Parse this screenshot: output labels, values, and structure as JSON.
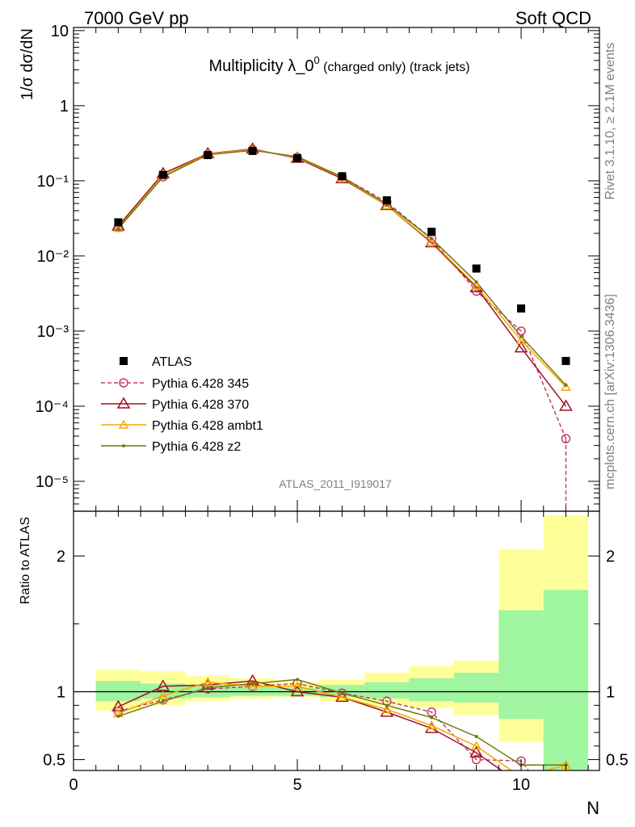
{
  "header": {
    "left": "7000 GeV pp",
    "right": "Soft QCD"
  },
  "side_label_top": "Rivet 3.1.10, ≥ 2.1M events",
  "side_label_bottom": "mcplots.cern.ch [arXiv:1306.3436]",
  "analysis_label": "ATLAS_2011_I919017",
  "colors": {
    "atlas": "#000000",
    "p345": "#c0406a",
    "p370": "#a0101f",
    "ambt1": "#f5a800",
    "z2": "#6b7a10",
    "band_inner": "#a0f5a0",
    "band_outer": "#ffff9a"
  },
  "chart_data": [
    {
      "type": "scatter",
      "title": "Multiplicity λ_0",
      "title_sup": "0",
      "title_suffix": " (charged only) (track jets)",
      "xlabel": "N",
      "ylabel": "1/σ dσ/dN",
      "yscale": "log",
      "xlim": [
        0,
        11.75
      ],
      "ylim": [
        4e-06,
        11
      ],
      "ytick_labels": [
        "10⁻⁵",
        "10⁻⁴",
        "10⁻³",
        "10⁻²",
        "10⁻¹",
        "1",
        "10"
      ],
      "legend_position": "left-middle",
      "series": [
        {
          "name": "ATLAS",
          "x": [
            1,
            2,
            3,
            4,
            5,
            6,
            7,
            8,
            9,
            10,
            11
          ],
          "y": [
            0.028,
            0.12,
            0.22,
            0.25,
            0.2,
            0.115,
            0.055,
            0.021,
            0.0068,
            0.002,
            0.0004
          ]
        },
        {
          "name": "Pythia 6.428 345",
          "x": [
            1,
            2,
            3,
            4,
            5,
            6,
            7,
            8,
            9,
            10,
            11
          ],
          "y": [
            0.024,
            0.113,
            0.224,
            0.26,
            0.205,
            0.113,
            0.052,
            0.017,
            0.0034,
            0.001,
            3.7e-05
          ]
        },
        {
          "name": "Pythia 6.428 370",
          "x": [
            1,
            2,
            3,
            4,
            5,
            6,
            7,
            8,
            9,
            10,
            11
          ],
          "y": [
            0.025,
            0.125,
            0.23,
            0.265,
            0.2,
            0.107,
            0.047,
            0.015,
            0.0038,
            0.0006,
            0.0001
          ]
        },
        {
          "name": "Pythia 6.428 ambt1",
          "x": [
            1,
            2,
            3,
            4,
            5,
            6,
            7,
            8,
            9,
            10,
            11
          ],
          "y": [
            0.0235,
            0.117,
            0.228,
            0.26,
            0.205,
            0.111,
            0.047,
            0.0155,
            0.004,
            0.00075,
            0.00018
          ]
        },
        {
          "name": "Pythia 6.428 z2",
          "x": [
            1,
            2,
            3,
            4,
            5,
            6,
            7,
            8,
            9,
            10,
            11
          ],
          "y": [
            0.023,
            0.113,
            0.222,
            0.255,
            0.21,
            0.113,
            0.049,
            0.017,
            0.0045,
            0.00085,
            0.00019
          ]
        }
      ]
    },
    {
      "type": "line",
      "ylabel": "Ratio to ATLAS",
      "xlabel": "N",
      "xlim": [
        0,
        11.75
      ],
      "ylim": [
        0.42,
        2.33
      ],
      "xtick_labels": [
        "0",
        "5",
        "10"
      ],
      "ytick_labels": [
        "0.5",
        "1",
        "2"
      ],
      "band_x": [
        0.5,
        1.5,
        2.5,
        3.5,
        4.5,
        5.5,
        6.5,
        7.5,
        8.5,
        9.5,
        10.5,
        11.5
      ],
      "band_inner": [
        [
          0.93,
          1.08
        ],
        [
          0.95,
          1.06
        ],
        [
          0.96,
          1.05
        ],
        [
          0.97,
          1.04
        ],
        [
          0.97,
          1.03
        ],
        [
          0.96,
          1.05
        ],
        [
          0.95,
          1.07
        ],
        [
          0.93,
          1.1
        ],
        [
          0.92,
          1.14
        ],
        [
          0.8,
          1.6
        ],
        [
          0.35,
          1.75
        ]
      ],
      "band_outer": [
        [
          0.86,
          1.16
        ],
        [
          0.9,
          1.15
        ],
        [
          0.93,
          1.12
        ],
        [
          0.95,
          1.1
        ],
        [
          0.96,
          1.07
        ],
        [
          0.93,
          1.09
        ],
        [
          0.9,
          1.14
        ],
        [
          0.88,
          1.19
        ],
        [
          0.83,
          1.23
        ],
        [
          0.63,
          2.05
        ],
        [
          0.35,
          2.3
        ]
      ],
      "series": [
        {
          "name": "Pythia 6.428 345",
          "x": [
            1,
            2,
            3,
            4,
            5,
            6,
            7,
            8,
            9,
            10,
            11
          ],
          "y": [
            0.855,
            0.94,
            1.02,
            1.04,
            1.06,
            0.99,
            0.93,
            0.85,
            0.5,
            0.49,
            null
          ]
        },
        {
          "name": "Pythia 6.428 370",
          "x": [
            1,
            2,
            3,
            4,
            5,
            6,
            7,
            8,
            9,
            10,
            11
          ],
          "y": [
            0.89,
            1.04,
            1.05,
            1.08,
            1.0,
            0.96,
            0.85,
            0.73,
            0.55,
            0.32,
            null
          ]
        },
        {
          "name": "Pythia 6.428 ambt1",
          "x": [
            1,
            2,
            3,
            4,
            5,
            6,
            7,
            8,
            9,
            10,
            11
          ],
          "y": [
            0.84,
            0.97,
            1.07,
            1.04,
            1.04,
            0.96,
            0.87,
            0.75,
            0.6,
            0.37,
            0.46
          ]
        },
        {
          "name": "Pythia 6.428 z2",
          "x": [
            1,
            2,
            3,
            4,
            5,
            6,
            7,
            8,
            9,
            10,
            11
          ],
          "y": [
            0.82,
            0.93,
            1.03,
            1.06,
            1.09,
            0.99,
            0.9,
            0.81,
            0.67,
            0.46,
            0.46
          ]
        }
      ]
    }
  ]
}
